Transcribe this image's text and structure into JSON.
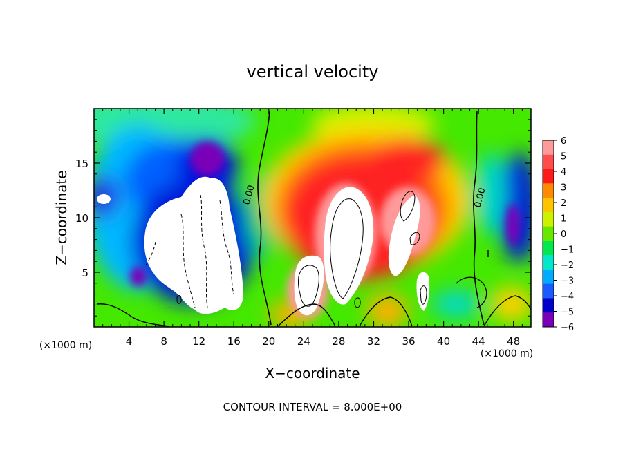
{
  "chart_data": {
    "type": "heatmap",
    "title": "vertical velocity",
    "xlabel": "X−coordinate",
    "ylabel": "Z−coordinate",
    "x_unit_left": "(×1000 m)",
    "x_unit_right": "(×1000 m)",
    "footer": "CONTOUR INTERVAL = 8.000E+00",
    "xlim": [
      0,
      50
    ],
    "ylim": [
      0,
      20
    ],
    "x_ticks": [
      4,
      8,
      12,
      16,
      20,
      24,
      28,
      32,
      36,
      40,
      44,
      48
    ],
    "x_tick_labels": [
      "4",
      "8",
      "12",
      "16",
      "20",
      "24",
      "28",
      "32",
      "36",
      "40",
      "44",
      "48"
    ],
    "y_ticks": [
      5,
      10,
      15
    ],
    "y_tick_labels": [
      "5",
      "10",
      "15"
    ],
    "contour_labels": [
      "0.00",
      "0.00"
    ],
    "colorbar": {
      "levels": [
        6,
        5,
        4,
        3,
        2,
        1,
        0,
        -1,
        -2,
        -3,
        -4,
        -5,
        -6
      ],
      "labels": [
        "6",
        "5",
        "4",
        "3",
        "2",
        "1",
        "0",
        "−1",
        "−2",
        "−3",
        "−4",
        "−5",
        "−6"
      ],
      "colors": [
        "#ff9a9a",
        "#ff4d4d",
        "#ff1a1a",
        "#ff8a00",
        "#ffc400",
        "#ccf200",
        "#66e800",
        "#00e84d",
        "#00e8c8",
        "#00aaff",
        "#1a5aff",
        "#0000cc",
        "#7a00b8"
      ]
    }
  }
}
